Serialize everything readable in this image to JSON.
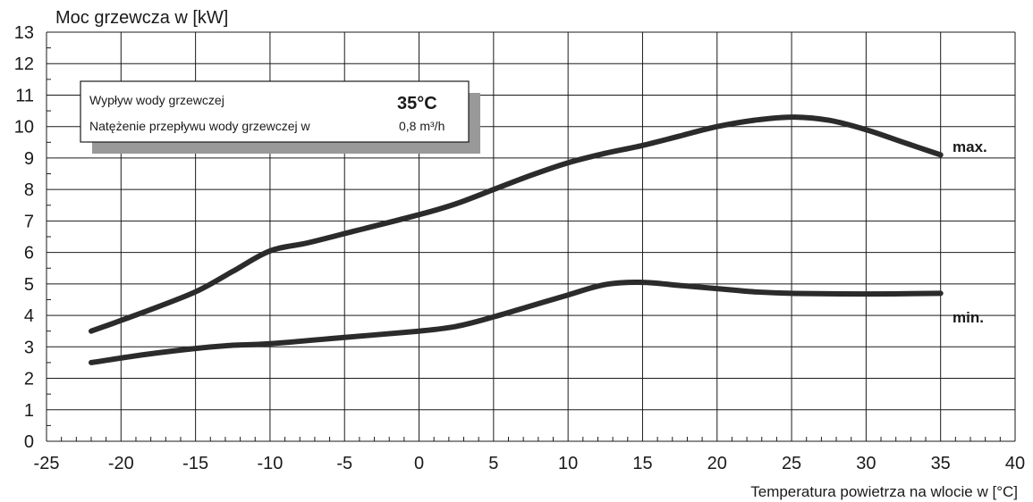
{
  "chart_data": {
    "type": "line",
    "title": "",
    "ylabel": "Moc grzewcza w [kW]",
    "xlabel": "Temperatura powietrza na wlocie w [°C]",
    "xlim": [
      -25,
      40
    ],
    "ylim": [
      0,
      13
    ],
    "xticks": [
      -25,
      -20,
      -15,
      -10,
      -5,
      0,
      5,
      10,
      15,
      20,
      25,
      30,
      35,
      40
    ],
    "yticks": [
      0,
      1,
      2,
      3,
      4,
      5,
      6,
      7,
      8,
      9,
      10,
      11,
      12,
      13
    ],
    "grid": true,
    "series": [
      {
        "name": "max.",
        "points": [
          [
            -22,
            3.5
          ],
          [
            -18.5,
            4.1
          ],
          [
            -15,
            4.75
          ],
          [
            -12.5,
            5.4
          ],
          [
            -10,
            6.05
          ],
          [
            -7.5,
            6.3
          ],
          [
            -5,
            6.6
          ],
          [
            0,
            7.2
          ],
          [
            2.5,
            7.55
          ],
          [
            5,
            8.0
          ],
          [
            7.5,
            8.45
          ],
          [
            10,
            8.85
          ],
          [
            12.5,
            9.15
          ],
          [
            15,
            9.4
          ],
          [
            17.5,
            9.7
          ],
          [
            20,
            10.0
          ],
          [
            22.5,
            10.2
          ],
          [
            25,
            10.3
          ],
          [
            27.5,
            10.2
          ],
          [
            30,
            9.9
          ],
          [
            32.5,
            9.5
          ],
          [
            35,
            9.1
          ]
        ]
      },
      {
        "name": "min.",
        "points": [
          [
            -22,
            2.5
          ],
          [
            -18.5,
            2.75
          ],
          [
            -15,
            2.95
          ],
          [
            -12.5,
            3.05
          ],
          [
            -10,
            3.1
          ],
          [
            -5,
            3.3
          ],
          [
            0,
            3.5
          ],
          [
            2.5,
            3.65
          ],
          [
            5,
            3.95
          ],
          [
            7.5,
            4.3
          ],
          [
            10,
            4.65
          ],
          [
            12.5,
            4.98
          ],
          [
            15,
            5.05
          ],
          [
            17.5,
            4.95
          ],
          [
            20,
            4.85
          ],
          [
            22.5,
            4.75
          ],
          [
            25,
            4.7
          ],
          [
            30,
            4.68
          ],
          [
            35,
            4.7
          ]
        ]
      }
    ]
  },
  "info_box": {
    "row1_label": "Wypływ wody grzewczej",
    "row1_value": "35°C",
    "row2_label": "Natężenie przepływu wody grzewczej w",
    "row2_value": "0,8 m³/h"
  },
  "colors": {
    "line": "#2b2b2b",
    "grid": "#1a1a1a",
    "box_shadow": "#999999"
  }
}
